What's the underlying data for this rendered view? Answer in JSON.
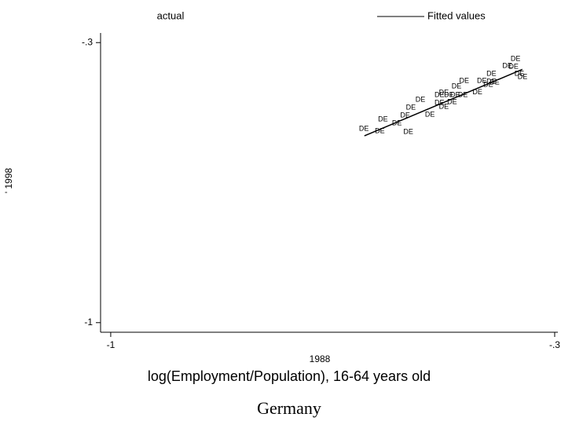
{
  "chart_data": {
    "type": "scatter",
    "legend_text": "actual",
    "x_label_top": "1988",
    "x_label": "log(Employment/Population), 16-64 years old",
    "y_label": "' 1998",
    "note": "Germany",
    "xlim": [
      -1.016,
      -0.295
    ],
    "ylim": [
      -1.024,
      -0.276
    ],
    "xticks": [
      -1,
      {
        "value": -0.3,
        "label": "-.3"
      }
    ],
    "yticks": [
      {
        "value": -0.3,
        "label": "-.3"
      },
      -1
    ],
    "series": [
      {
        "name": "actual",
        "color": "#000000",
        "x": [
          -0.611,
          -0.586,
          -0.581,
          -0.559,
          -0.546,
          -0.541,
          -0.537,
          -0.522,
          -0.507,
          -0.492,
          -0.485,
          -0.492,
          -0.485,
          -0.477,
          -0.472,
          -0.467,
          -0.455,
          -0.465,
          -0.453,
          -0.432,
          -0.425,
          -0.41,
          -0.41,
          -0.415,
          -0.405,
          -0.385,
          -0.375,
          -0.372,
          -0.366,
          -0.361
        ],
        "values": [
          -0.516,
          -0.522,
          -0.492,
          -0.502,
          -0.482,
          -0.524,
          -0.463,
          -0.443,
          -0.48,
          -0.431,
          -0.425,
          -0.451,
          -0.461,
          -0.431,
          -0.449,
          -0.431,
          -0.431,
          -0.41,
          -0.396,
          -0.424,
          -0.396,
          -0.378,
          -0.398,
          -0.406,
          -0.4,
          -0.359,
          -0.361,
          -0.341,
          -0.378,
          -0.386
        ],
        "labels": [
          "DE",
          "DE",
          "DE",
          "DE",
          "DE",
          "DE",
          "DE",
          "DE",
          "DE",
          "DE",
          "DE",
          "DE",
          "DE",
          "DE",
          "DE",
          "DE",
          "DE",
          "DE",
          "DE",
          "DE",
          "DE",
          "DE",
          "DE",
          "DE",
          "DE",
          "DE",
          "DE",
          "DE",
          "DE",
          "DE"
        ]
      },
      {
        "name": "Fitted values",
        "color": "#000000",
        "line": true,
        "x": [
          -0.6,
          -0.351
        ],
        "values": [
          -0.533,
          -0.367
        ]
      }
    ]
  }
}
